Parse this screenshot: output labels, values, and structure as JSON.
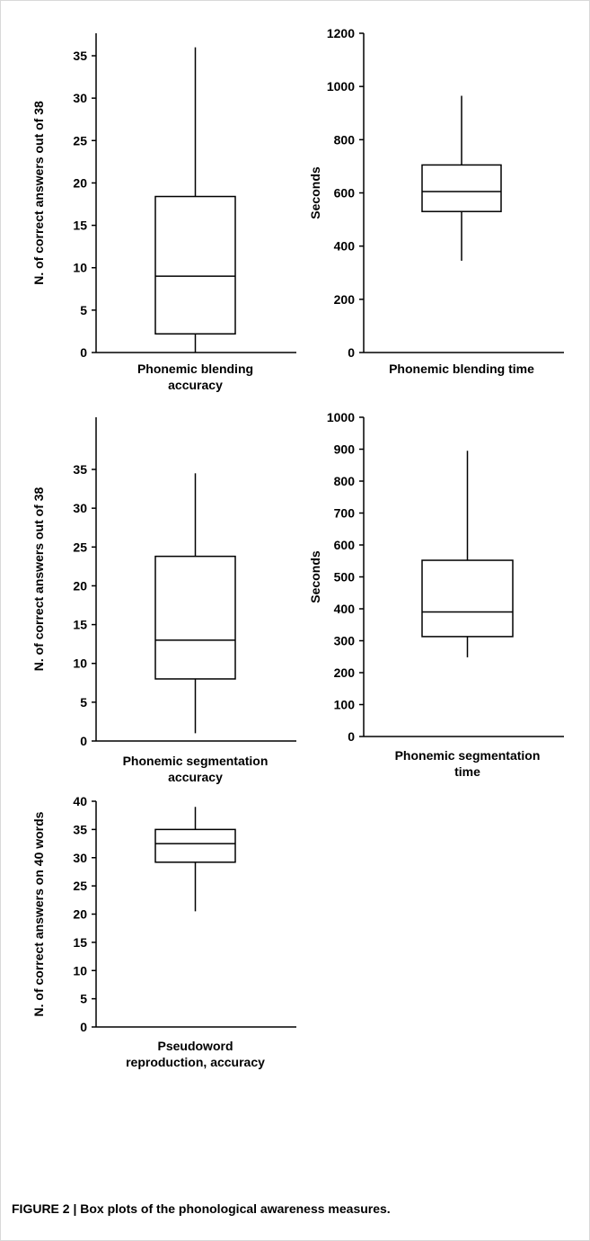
{
  "figure": {
    "caption_label": "FIGURE 2 |",
    "caption_text": "Box plots of the phonological awareness measures.",
    "frame_color": "#d9d9d9",
    "ink_color": "#000000"
  },
  "chart_data": [
    {
      "type": "boxplot",
      "category": "Phonemic blending accuracy",
      "xlabel_lines": [
        "Phonemic blending",
        "accuracy"
      ],
      "ylabel": "N. of correct answers out of 38",
      "ylim": [
        0,
        35
      ],
      "yticks": [
        0,
        5,
        10,
        15,
        20,
        25,
        30,
        35
      ],
      "box": {
        "min": 0,
        "q1": 2.2,
        "median": 9,
        "q3": 18.4,
        "max": 36
      }
    },
    {
      "type": "boxplot",
      "category": "Phonemic blending time",
      "xlabel_lines": [
        "Phonemic blending time"
      ],
      "ylabel": "Seconds",
      "ylim": [
        0,
        1200
      ],
      "yticks": [
        0,
        200,
        400,
        600,
        800,
        1000,
        1200
      ],
      "box": {
        "min": 345,
        "q1": 530,
        "median": 605,
        "q3": 705,
        "max": 965
      }
    },
    {
      "type": "boxplot",
      "category": "Phonemic segmentation accuracy",
      "xlabel_lines": [
        "Phonemic segmentation",
        "accuracy"
      ],
      "ylabel": "N. of correct answers out of 38",
      "ylim": [
        0,
        35
      ],
      "yticks": [
        0,
        5,
        10,
        15,
        20,
        25,
        30,
        35
      ],
      "box": {
        "min": 1,
        "q1": 8,
        "median": 13,
        "q3": 23.8,
        "max": 34.5
      }
    },
    {
      "type": "boxplot",
      "category": "Phonemic segmentation time",
      "xlabel_lines": [
        "Phonemic segmentation",
        "time"
      ],
      "ylabel": "Seconds",
      "ylim": [
        0,
        1000
      ],
      "yticks": [
        0,
        100,
        200,
        300,
        400,
        500,
        600,
        700,
        800,
        900,
        1000
      ],
      "box": {
        "min": 248,
        "q1": 313,
        "median": 390,
        "q3": 552,
        "max": 895
      }
    },
    {
      "type": "boxplot",
      "category": "Pseudoword reproduction, accuracy",
      "xlabel_lines": [
        "Pseudoword",
        "reproduction, accuracy"
      ],
      "ylabel": "N. of correct answers on 40 words",
      "ylim": [
        0,
        40
      ],
      "yticks": [
        0,
        5,
        10,
        15,
        20,
        25,
        30,
        35,
        40
      ],
      "box": {
        "min": 20.5,
        "q1": 29.2,
        "median": 32.5,
        "q3": 35,
        "max": 39
      }
    }
  ]
}
